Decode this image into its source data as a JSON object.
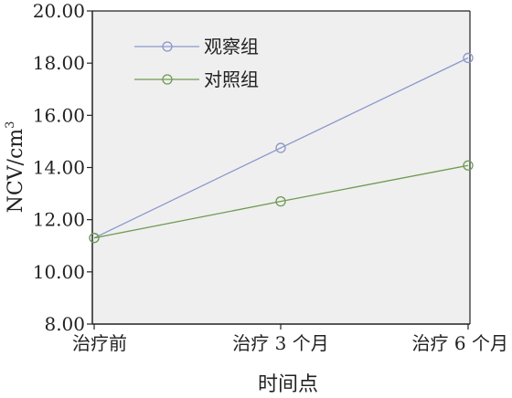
{
  "chart_data": {
    "type": "line",
    "categories": [
      "治疗前",
      "治疗 3 个月",
      "治疗 6 个月"
    ],
    "series": [
      {
        "name": "观察组",
        "values": [
          11.3,
          14.75,
          18.2
        ],
        "color": "#8a96cc"
      },
      {
        "name": "对照组",
        "values": [
          11.3,
          12.7,
          14.08
        ],
        "color": "#6f9a52"
      }
    ],
    "xlabel": "时间点",
    "ylabel": "NCV/cm",
    "ylabel_superscript": "3",
    "ylim": [
      8.0,
      20.0
    ],
    "yticks": [
      "8.00",
      "10.00",
      "12.00",
      "14.00",
      "16.00",
      "18.00",
      "20.00"
    ],
    "grid": false,
    "legend_position": "top-left",
    "plot_background": "#efefef",
    "marker": "open-circle"
  }
}
